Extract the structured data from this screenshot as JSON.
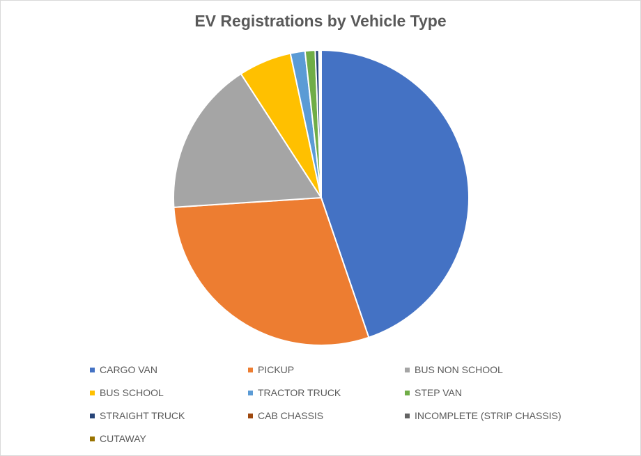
{
  "chart_data": {
    "type": "pie",
    "title": "EV Registrations by Vehicle Type",
    "categories": [
      "CARGO VAN",
      "PICKUP",
      "BUS NON SCHOOL",
      "BUS SCHOOL",
      "TRACTOR TRUCK",
      "STEP VAN",
      "STRAIGHT TRUCK",
      "CAB CHASSIS",
      "INCOMPLETE (STRIP CHASSIS)",
      "CUTAWAY"
    ],
    "values": [
      44.8,
      29.2,
      16.9,
      5.8,
      1.6,
      1.1,
      0.4,
      0.1,
      0.1,
      0.05
    ],
    "colors": [
      "#4472C4",
      "#ED7D31",
      "#A5A5A5",
      "#FFC000",
      "#5B9BD5",
      "#70AD47",
      "#264478",
      "#9E480E",
      "#636363",
      "#997300"
    ],
    "legend_position": "bottom"
  }
}
